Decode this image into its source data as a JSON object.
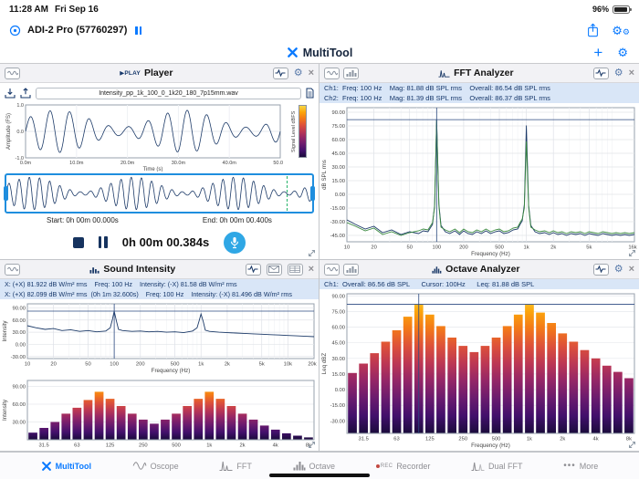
{
  "status_bar": {
    "time": "11:28 AM",
    "date": "Fri Sep 16",
    "battery": "96%"
  },
  "app_bar": {
    "device_name": "ADI-2 Pro (57760297)"
  },
  "nav": {
    "title": "MultiTool",
    "plus_glyph": "+"
  },
  "icons": {
    "gear": "⚙",
    "close": "×",
    "more_glyph": "•••",
    "rec_label": "REC"
  },
  "panels": {
    "player": {
      "badge": "▶PLAY",
      "title": "Player",
      "file_name": "Intensity_pp_1k_100_0_1k20_180_7p15mm.wav",
      "start_label": "Start: 0h 00m 00.000s",
      "end_label": "End: 0h 00m 00.400s",
      "time_display": "0h 00m 00.384s"
    },
    "fft": {
      "title": "FFT Analyzer",
      "info_ch1": "Ch1:  Freq: 100 Hz    Mag: 81.88 dB SPL rms    Overall: 86.54 dB SPL rms",
      "info_ch2": "Ch2:  Freq: 100 Hz    Mag: 81.39 dB SPL rms    Overall: 86.37 dB SPL rms"
    },
    "intensity": {
      "title": "Sound Intensity",
      "info_line1": "X: (+X) 81.922 dB W/m² rms    Freq: 100 Hz    Intensity: (-X) 81.58 dB W/m² rms",
      "info_line2": "X: (+X) 82.099 dB W/m² rms  (0h 1m 32.600s)    Freq: 100 Hz    Intensity: (-X) 81.496 dB W/m² rms"
    },
    "octave": {
      "title": "Octave Analyzer",
      "info": "Ch1:  Overall: 86.56 dB SPL      Cursor: 100Hz      Leq: 81.88 dB SPL"
    }
  },
  "toolbar": {
    "items": [
      {
        "id": "multitool",
        "label": "MultiTool",
        "active": true
      },
      {
        "id": "oscope",
        "label": "Oscope",
        "active": false
      },
      {
        "id": "fft",
        "label": "FFT",
        "active": false
      },
      {
        "id": "octave",
        "label": "Octave",
        "active": false
      },
      {
        "id": "recorder",
        "label": "Recorder",
        "active": false
      },
      {
        "id": "dualfft",
        "label": "Dual FFT",
        "active": false
      },
      {
        "id": "more",
        "label": "More",
        "active": false
      }
    ]
  },
  "colors": {
    "accent": "#0a7aff",
    "trace_ch1": "#1c3a68",
    "trace_ch2": "#3a8a3f",
    "cursor": "#2c4a80",
    "info_bg": "#d9e6f7",
    "info_text": "#17386b",
    "selection_border": "#1f8ede",
    "record_button": "#2fa7e5",
    "heat": [
      "#1a0b3b",
      "#42106b",
      "#6a1b6e",
      "#932667",
      "#bc3754",
      "#dd513a",
      "#f37819",
      "#fca50a",
      "#f6d746"
    ]
  },
  "chart_data": [
    {
      "id": "player-wave",
      "host": "chart-player-wave",
      "type": "waveform",
      "xlabel": "Time (s)",
      "ylabel": "Amplitude (FS)",
      "x_ticks": [
        "0.0m",
        "10.0m",
        "20.0m",
        "30.0m",
        "40.0m",
        "50.0m"
      ],
      "y_ticks": [
        "1.0",
        "0.0",
        "-1.0"
      ],
      "duration_s": 0.05,
      "carrier_hz": 260,
      "mod_hz": 40,
      "mod_depth": 0.4,
      "amplitude": 0.85,
      "colorbar_label": "Signal Level dBFS"
    },
    {
      "id": "selection-wave",
      "host": "chart-selection-wave",
      "type": "waveform",
      "duration_s": 0.4,
      "carrier_hz": 75,
      "mod_hz": 7.5,
      "mod_depth": 0.45,
      "amplitude": 0.95
    },
    {
      "id": "fft",
      "host": "chart-fft",
      "type": "line",
      "xscale": "log",
      "xlim": [
        10,
        16000
      ],
      "ylim": [
        -52,
        95
      ],
      "xlabel": "Frequency (Hz)",
      "ylabel": "dB SPL rms",
      "y_ticks": [
        90,
        75,
        60,
        45,
        30,
        15,
        0,
        -15,
        -30,
        -45
      ],
      "x_ticks": [
        [
          10,
          "10"
        ],
        [
          20,
          "20"
        ],
        [
          50,
          "50"
        ],
        [
          100,
          "100"
        ],
        [
          200,
          "200"
        ],
        [
          500,
          "500"
        ],
        [
          1000,
          "1k"
        ],
        [
          2000,
          "2k"
        ],
        [
          5000,
          "5k"
        ],
        [
          16000,
          "16k"
        ]
      ],
      "cursor": {
        "freq": 100,
        "value": 81.88
      },
      "series": [
        {
          "name": "Ch1",
          "color": "#1c3a68",
          "points": [
            [
              10,
              -28
            ],
            [
              12.5,
              -33
            ],
            [
              16,
              -38
            ],
            [
              20,
              -35
            ],
            [
              25,
              -42
            ],
            [
              31.5,
              -39
            ],
            [
              40,
              -44
            ],
            [
              50,
              -41
            ],
            [
              63,
              -43
            ],
            [
              71,
              -40
            ],
            [
              80,
              -41
            ],
            [
              90,
              -33
            ],
            [
              95,
              -12
            ],
            [
              100,
              81.88
            ],
            [
              106,
              -11
            ],
            [
              112,
              -34
            ],
            [
              125,
              -41
            ],
            [
              140,
              -43
            ],
            [
              160,
              -40
            ],
            [
              180,
              -44
            ],
            [
              200,
              -40
            ],
            [
              224,
              -43
            ],
            [
              250,
              -44
            ],
            [
              280,
              -41
            ],
            [
              315,
              -43
            ],
            [
              355,
              -40
            ],
            [
              400,
              -43
            ],
            [
              450,
              -41
            ],
            [
              500,
              -40
            ],
            [
              560,
              -43
            ],
            [
              630,
              -42
            ],
            [
              710,
              -39
            ],
            [
              800,
              -38
            ],
            [
              850,
              -33
            ],
            [
              900,
              -29
            ],
            [
              950,
              -11
            ],
            [
              1000,
              75.5
            ],
            [
              1060,
              -12
            ],
            [
              1120,
              -34
            ],
            [
              1250,
              -41
            ],
            [
              1400,
              -43
            ],
            [
              1600,
              -42
            ],
            [
              1800,
              -44
            ],
            [
              2000,
              -42
            ],
            [
              2240,
              -44
            ],
            [
              2500,
              -43
            ],
            [
              2800,
              -45
            ],
            [
              3150,
              -43
            ],
            [
              3550,
              -44
            ],
            [
              4000,
              -43
            ],
            [
              4500,
              -45
            ],
            [
              5000,
              -43
            ],
            [
              5600,
              -44
            ],
            [
              6300,
              -45
            ],
            [
              7100,
              -43
            ],
            [
              8000,
              -44
            ],
            [
              9000,
              -45
            ],
            [
              10000,
              -44
            ],
            [
              11200,
              -45
            ],
            [
              12500,
              -44
            ],
            [
              14000,
              -45
            ],
            [
              16000,
              -44
            ]
          ]
        },
        {
          "name": "Ch2",
          "color": "#3a8a3f",
          "points": [
            [
              10,
              -31
            ],
            [
              12.5,
              -35
            ],
            [
              16,
              -40
            ],
            [
              20,
              -37
            ],
            [
              25,
              -44
            ],
            [
              31.5,
              -41
            ],
            [
              40,
              -45
            ],
            [
              50,
              -42
            ],
            [
              63,
              -40
            ],
            [
              71,
              -38
            ],
            [
              80,
              -39
            ],
            [
              90,
              -31
            ],
            [
              95,
              -14
            ],
            [
              100,
              81.39
            ],
            [
              106,
              -13
            ],
            [
              112,
              -36
            ],
            [
              125,
              -39
            ],
            [
              140,
              -41
            ],
            [
              160,
              -38
            ],
            [
              180,
              -42
            ],
            [
              200,
              -38
            ],
            [
              224,
              -41
            ],
            [
              250,
              -42
            ],
            [
              280,
              -39
            ],
            [
              315,
              -41
            ],
            [
              355,
              -38
            ],
            [
              400,
              -41
            ],
            [
              450,
              -39
            ],
            [
              500,
              -38
            ],
            [
              560,
              -41
            ],
            [
              630,
              -40
            ],
            [
              710,
              -37
            ],
            [
              800,
              -36
            ],
            [
              850,
              -31
            ],
            [
              900,
              -27
            ],
            [
              950,
              -15
            ],
            [
              1000,
              58
            ],
            [
              1060,
              -14
            ],
            [
              1120,
              -36
            ],
            [
              1250,
              -39
            ],
            [
              1400,
              -41
            ],
            [
              1600,
              -40
            ],
            [
              1800,
              -42
            ],
            [
              2000,
              -40
            ],
            [
              2240,
              -42
            ],
            [
              2500,
              -41
            ],
            [
              2800,
              -43
            ],
            [
              3150,
              -41
            ],
            [
              3550,
              -42
            ],
            [
              4000,
              -41
            ],
            [
              4500,
              -43
            ],
            [
              5000,
              -41
            ],
            [
              5600,
              -42
            ],
            [
              6300,
              -43
            ],
            [
              7100,
              -41
            ],
            [
              8000,
              -42
            ],
            [
              9000,
              -43
            ],
            [
              10000,
              -42
            ],
            [
              11200,
              -43
            ],
            [
              12500,
              -42
            ],
            [
              14000,
              -43
            ],
            [
              16000,
              -42
            ]
          ]
        }
      ]
    },
    {
      "id": "intensity-line",
      "host": "chart-intensity-line",
      "type": "line",
      "xscale": "log",
      "xlim": [
        10,
        20000
      ],
      "ylim": [
        -35,
        100
      ],
      "xlabel": "Frequency (Hz)",
      "ylabel": "Intensity",
      "y_ticks": [
        90,
        60,
        30,
        0,
        -30
      ],
      "x_ticks": [
        [
          10,
          "10"
        ],
        [
          20,
          "20"
        ],
        [
          50,
          "50"
        ],
        [
          100,
          "100"
        ],
        [
          200,
          "200"
        ],
        [
          500,
          "500"
        ],
        [
          1000,
          "1k"
        ],
        [
          2000,
          "2k"
        ],
        [
          5000,
          "5k"
        ],
        [
          10000,
          "10k"
        ],
        [
          20000,
          "20k"
        ]
      ],
      "cursor": {
        "freq": 100,
        "value": 81.92
      },
      "series": [
        {
          "name": "Intensity",
          "color": "#1c3a68",
          "points": [
            [
              10,
              46
            ],
            [
              12.5,
              41
            ],
            [
              16,
              37
            ],
            [
              20,
              39
            ],
            [
              25,
              34
            ],
            [
              31.5,
              36
            ],
            [
              40,
              32
            ],
            [
              50,
              34
            ],
            [
              63,
              31
            ],
            [
              80,
              33
            ],
            [
              90,
              41
            ],
            [
              95,
              60
            ],
            [
              100,
              81.92
            ],
            [
              106,
              58
            ],
            [
              112,
              37
            ],
            [
              125,
              34
            ],
            [
              160,
              32
            ],
            [
              200,
              33
            ],
            [
              250,
              31
            ],
            [
              315,
              32
            ],
            [
              400,
              30
            ],
            [
              500,
              31
            ],
            [
              630,
              29
            ],
            [
              800,
              33
            ],
            [
              900,
              41
            ],
            [
              950,
              58
            ],
            [
              1000,
              75
            ],
            [
              1060,
              56
            ],
            [
              1120,
              35
            ],
            [
              1250,
              32
            ],
            [
              1600,
              30
            ],
            [
              2000,
              29
            ],
            [
              2500,
              28
            ],
            [
              3150,
              27
            ],
            [
              4000,
              26
            ],
            [
              5000,
              25
            ],
            [
              6300,
              24
            ],
            [
              8000,
              23
            ],
            [
              10000,
              22
            ],
            [
              12500,
              21
            ],
            [
              16000,
              20
            ],
            [
              20000,
              19
            ]
          ]
        }
      ]
    },
    {
      "id": "intensity-bars",
      "host": "chart-intensity-bars",
      "type": "bar",
      "ylabel": "Intensity",
      "ylim": [
        0,
        100
      ],
      "y_ticks": [
        90,
        60,
        30
      ],
      "bands": [
        "25",
        "31.5",
        "40",
        "50",
        "63",
        "80",
        "100",
        "125",
        "160",
        "200",
        "250",
        "315",
        "400",
        "500",
        "630",
        "800",
        "1k",
        "1.25k",
        "1.6k",
        "2k",
        "2.5k",
        "3.15k",
        "4k",
        "5k",
        "6.3k",
        "8k"
      ],
      "values": [
        12,
        20,
        30,
        44,
        54,
        67,
        81,
        69,
        57,
        44,
        34,
        27,
        34,
        44,
        57,
        69,
        81,
        69,
        57,
        44,
        34,
        24,
        17,
        11,
        7,
        4
      ],
      "x_ticks": [
        "31.5",
        "63",
        "125",
        "250",
        "500",
        "1k",
        "2k",
        "4k",
        "8k"
      ]
    },
    {
      "id": "octave",
      "host": "chart-octave",
      "type": "bar",
      "ylabel": "Leq dBZ",
      "xlabel": "Frequency (Hz)",
      "ylim": [
        -42,
        92
      ],
      "y_ticks": [
        90,
        75,
        60,
        45,
        30,
        15,
        0,
        -15,
        -30
      ],
      "bands": [
        "25",
        "31.5",
        "40",
        "50",
        "63",
        "80",
        "100",
        "125",
        "160",
        "200",
        "250",
        "315",
        "400",
        "500",
        "630",
        "800",
        "1k",
        "1.25k",
        "1.6k",
        "2k",
        "2.5k",
        "3.15k",
        "4k",
        "5k",
        "6.3k",
        "8k"
      ],
      "values": [
        16,
        25,
        35,
        46,
        57,
        70,
        82,
        72,
        61,
        50,
        42,
        36,
        42,
        50,
        61,
        72,
        82,
        74,
        64,
        54,
        46,
        38,
        30,
        23,
        17,
        11
      ],
      "x_ticks": [
        "31.5",
        "63",
        "125",
        "250",
        "500",
        "1k",
        "2k",
        "4k",
        "8k"
      ],
      "cursor": {
        "band": "100",
        "value": 81.88
      }
    }
  ]
}
